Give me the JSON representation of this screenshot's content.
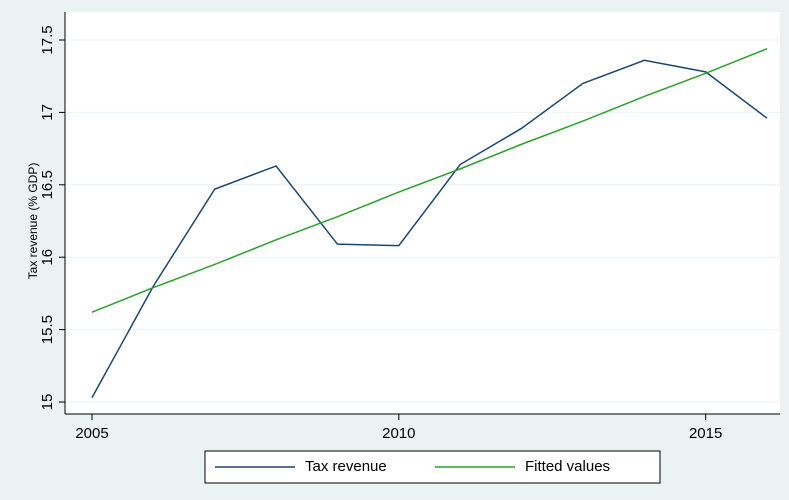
{
  "chart_data": {
    "type": "line",
    "y_label": "Tax revenue (% GDP)",
    "x": [
      2005,
      2006,
      2007,
      2008,
      2009,
      2010,
      2011,
      2012,
      2013,
      2014,
      2015,
      2016
    ],
    "series": [
      {
        "name": "Tax revenue",
        "color": "#1a476f",
        "values": [
          15.03,
          15.8,
          16.47,
          16.63,
          16.09,
          16.08,
          16.64,
          16.89,
          17.2,
          17.36,
          17.28,
          16.96
        ]
      },
      {
        "name": "Fitted values",
        "color": "#2ca02c",
        "values": [
          15.62,
          15.79,
          15.95,
          16.12,
          16.28,
          16.45,
          16.61,
          16.78,
          16.94,
          17.11,
          17.27,
          17.44
        ]
      }
    ],
    "xlim": [
      2005,
      2016
    ],
    "xticks": [
      2005,
      2010,
      2015
    ],
    "ylim": [
      15,
      17.5
    ],
    "yticks": [
      15,
      15.5,
      16,
      16.5,
      17,
      17.5
    ],
    "grid": true
  }
}
